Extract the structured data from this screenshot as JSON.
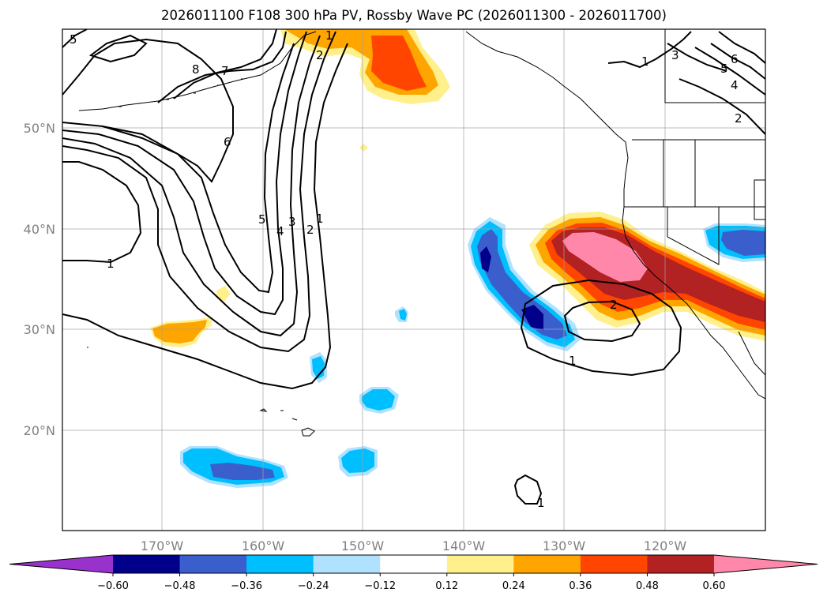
{
  "title": "2026011100 F108 300 hPa PV, Rossby Wave PC (2026011300 - 2026011700)",
  "map": {
    "lat_labels": [
      "50°N",
      "40°N",
      "30°N",
      "20°N"
    ],
    "lon_labels": [
      "170°W",
      "160°W",
      "150°W",
      "140°W",
      "130°W",
      "120°W"
    ],
    "contour_labels": [
      "5",
      "8",
      "7",
      "6",
      "1",
      "2",
      "3",
      "4",
      "5",
      "1",
      "1",
      "2",
      "3",
      "4",
      "5",
      "6",
      "2",
      "1",
      "2",
      "1",
      "1"
    ]
  },
  "colorbar": {
    "ticks": [
      "−0.60",
      "−0.48",
      "−0.36",
      "−0.24",
      "−0.12",
      "0.12",
      "0.24",
      "0.36",
      "0.48",
      "0.60"
    ],
    "colors": [
      "#9932cc",
      "#00008b",
      "#3a5fcd",
      "#00bfff",
      "#b0e2ff",
      "#ffffff",
      "#fff08c",
      "#ffa500",
      "#ff4500",
      "#b22222",
      "#ff88aa",
      "#ff88aa"
    ]
  }
}
